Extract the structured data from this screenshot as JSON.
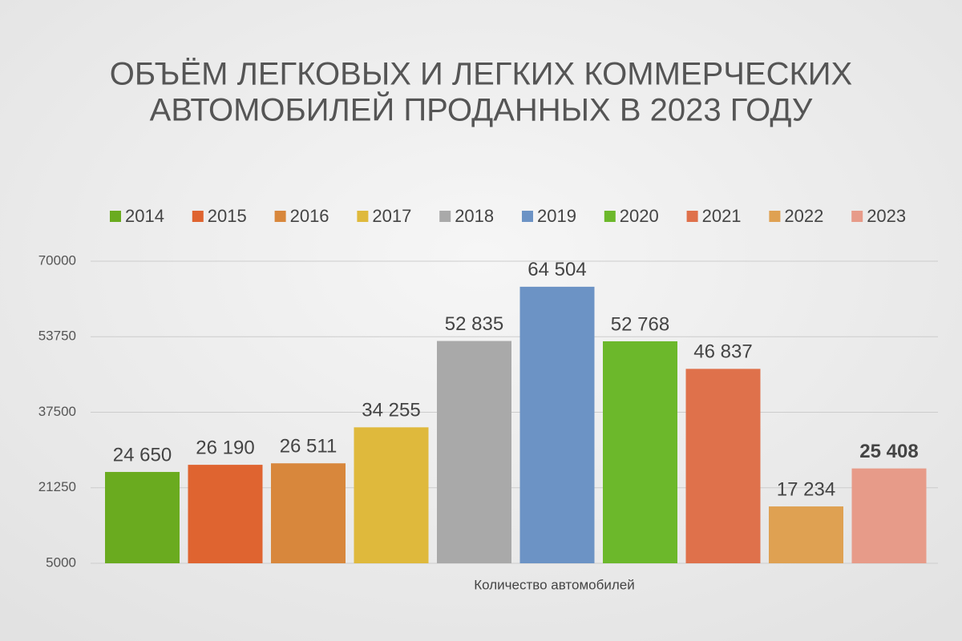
{
  "chart_data": {
    "type": "bar",
    "title": [
      "ОБЪЁМ ЛЕГКОВЫХ И ЛЕГКИХ КОММЕРЧЕСКИХ",
      "АВТОМОБИЛЕЙ ПРОДАННЫХ В 2023 ГОДУ"
    ],
    "categories": [
      "Количество автомобилей"
    ],
    "series": [
      {
        "name": "2014",
        "color": "#6aab1f",
        "values": [
          24650
        ],
        "value_labels": [
          "24 650"
        ]
      },
      {
        "name": "2015",
        "color": "#df6430",
        "values": [
          26190
        ],
        "value_labels": [
          "26 190"
        ]
      },
      {
        "name": "2016",
        "color": "#d8873c",
        "values": [
          26511
        ],
        "value_labels": [
          "26 511"
        ]
      },
      {
        "name": "2017",
        "color": "#dfb93c",
        "values": [
          34255
        ],
        "value_labels": [
          "34 255"
        ]
      },
      {
        "name": "2018",
        "color": "#a9a9a9",
        "values": [
          52835
        ],
        "value_labels": [
          "52 835"
        ]
      },
      {
        "name": "2019",
        "color": "#6c93c5",
        "values": [
          64504
        ],
        "value_labels": [
          "64 504"
        ]
      },
      {
        "name": "2020",
        "color": "#6cb82b",
        "values": [
          52768
        ],
        "value_labels": [
          "52 768"
        ]
      },
      {
        "name": "2021",
        "color": "#df714b",
        "values": [
          46837
        ],
        "value_labels": [
          "46 837"
        ]
      },
      {
        "name": "2022",
        "color": "#dfa152",
        "values": [
          17234
        ],
        "value_labels": [
          "17 234"
        ]
      },
      {
        "name": "2023",
        "color": "#e79b89",
        "values": [
          25408
        ],
        "value_labels": [
          "25 408"
        ]
      }
    ],
    "ylim": [
      5000,
      70000
    ],
    "yticks": [
      5000,
      21250,
      37500,
      53750,
      70000
    ],
    "grid": true
  }
}
